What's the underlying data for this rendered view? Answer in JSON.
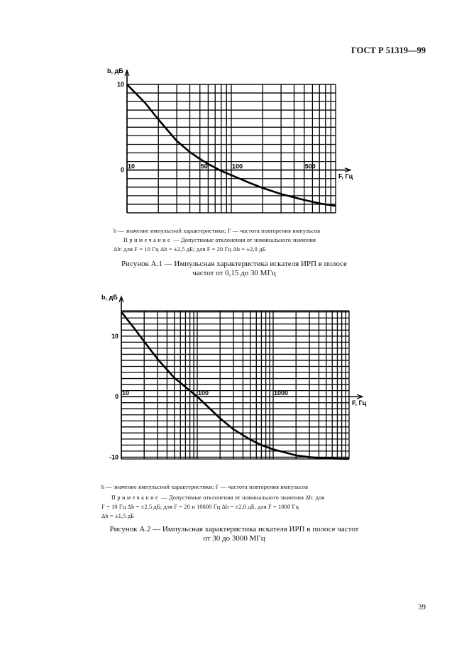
{
  "header": {
    "standard": "ГОСТ Р 51319—99"
  },
  "page_number": "39",
  "figures": [
    {
      "legend_line": "b — значение импульсной характеристики; F — частота повторения импульсов",
      "note_label": "Примечание",
      "note_lines": [
        " — Допустимые отклонения от номинального значения",
        "Δb: для F = 10 Гц   Δb = ±2,5 дБ; для F = 20 Гц   Δb = ±2,0 дБ"
      ],
      "caption_lines": [
        "Рисунок А.1 — Импульсная характеристика искателя ИРП в полосе",
        "частот от 0,15 до 30 МГц"
      ]
    },
    {
      "legend_line": "b — значение импульсной характеристики; F — частота повторения импульсов",
      "note_label": "Примечание",
      "note_lines": [
        " — Допустимые отклонения от номинального значения Δb: для",
        "F = 10 Гц   Δb = ±2,5 дБ;  для F = 20  и  10000 Гц   Δb = ±2,0 дБ,   для F = 1000 Гц",
        "Δb = ±1,5 дБ"
      ],
      "caption_lines": [
        "Рисунок А.2 — Импульсная характеристика  искателя ИРП в полосе частот",
        "от 30 до 3000 МГц"
      ]
    }
  ],
  "chart_data": [
    {
      "type": "line",
      "title": "",
      "xlabel": "F, Гц",
      "ylabel": "b, дБ",
      "xscale": "log",
      "xlim": [
        10,
        1000
      ],
      "ylim": [
        -5,
        10
      ],
      "grid": true,
      "x_tick_labels": [
        "10",
        "50",
        "100",
        "500"
      ],
      "y_tick_labels": [
        "10",
        "0"
      ],
      "series": [
        {
          "x": [
            10,
            15,
            20,
            30,
            40,
            50,
            60,
            80,
            100,
            150,
            200,
            300,
            500,
            700,
            1000
          ],
          "y": [
            10,
            7.8,
            5.9,
            3.4,
            2.1,
            1.3,
            0.7,
            -0.1,
            -0.6,
            -1.5,
            -2.1,
            -2.8,
            -3.5,
            -3.9,
            -4.2
          ]
        }
      ]
    },
    {
      "type": "line",
      "title": "",
      "xlabel": "F, Гц",
      "ylabel": "b, дБ",
      "xscale": "log",
      "xlim": [
        10,
        10000
      ],
      "ylim": [
        -10.3,
        14.2
      ],
      "grid": true,
      "x_tick_labels": [
        "10",
        "100",
        "1000"
      ],
      "y_tick_labels": [
        "10",
        "0",
        "-10"
      ],
      "series": [
        {
          "x": [
            10,
            15,
            20,
            30,
            50,
            70,
            100,
            150,
            200,
            300,
            500,
            700,
            1000,
            2000,
            3000,
            5000,
            10000
          ],
          "y": [
            14,
            11.2,
            9.1,
            6.2,
            3.1,
            1.6,
            0,
            -2.1,
            -3.6,
            -5.4,
            -7.1,
            -8.0,
            -8.7,
            -9.7,
            -10.0,
            -10.2,
            -10.3
          ]
        }
      ]
    }
  ]
}
